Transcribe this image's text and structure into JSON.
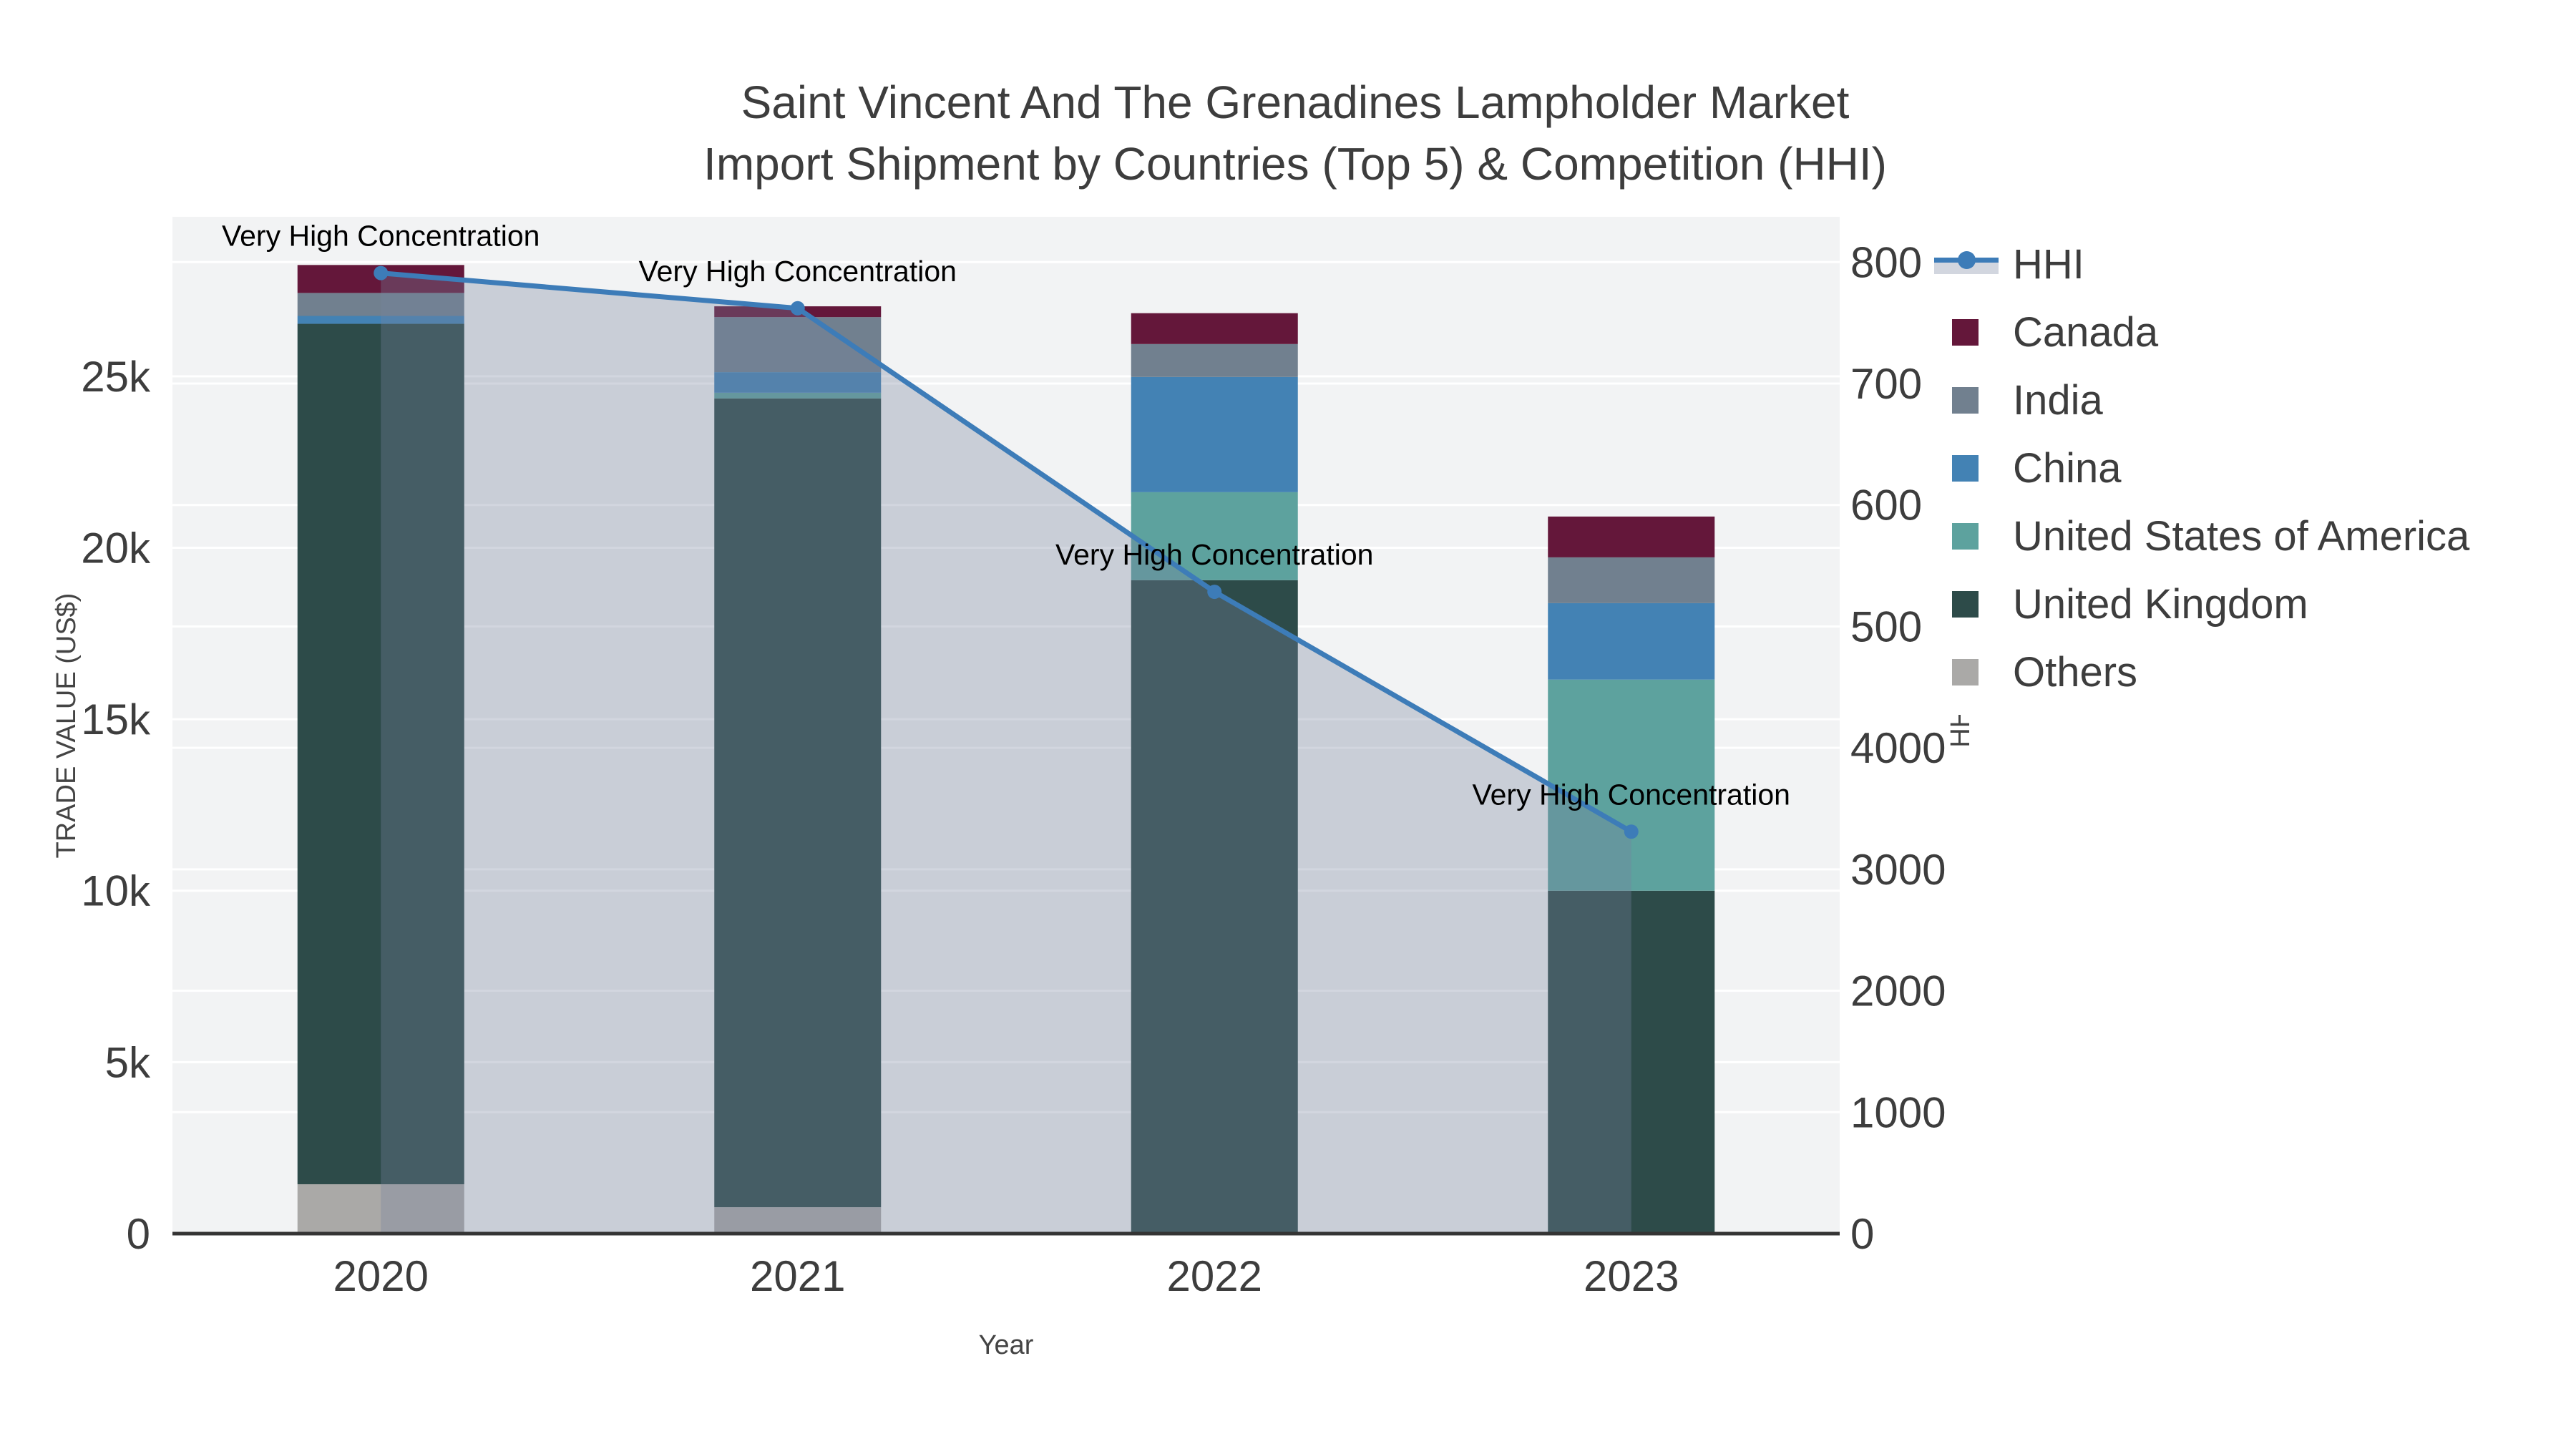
{
  "title": {
    "line1": "Saint Vincent And The Grenadines Lampholder Market",
    "line2": "Import Shipment by Countries (Top 5) & Competition (HHI)"
  },
  "axes": {
    "x": {
      "title": "Year",
      "ticks": [
        "2020",
        "2021",
        "2022",
        "2023"
      ]
    },
    "y_left": {
      "title": "TRADE VALUE (US$)",
      "tick_labels": [
        "0",
        "5k",
        "10k",
        "15k",
        "20k",
        "25k"
      ],
      "tick_values": [
        0,
        5000,
        10000,
        15000,
        20000,
        25000
      ],
      "range": [
        0,
        29650
      ]
    },
    "y_right": {
      "title": "HHI",
      "tick_labels": [
        "0",
        "1000",
        "2000",
        "3000",
        "4000",
        "5000",
        "6000",
        "7000",
        "8000"
      ],
      "tick_values": [
        0,
        1000,
        2000,
        3000,
        4000,
        5000,
        6000,
        7000,
        8000
      ],
      "range": [
        0,
        8373
      ]
    }
  },
  "chart_data": {
    "type": "bar+line",
    "subtype": "stacked-bars-with-line-on-secondary-axis",
    "categories": [
      "2020",
      "2021",
      "2022",
      "2023"
    ],
    "series_top_to_bottom": [
      {
        "name": "Canada",
        "color": "#64173a",
        "values": [
          815,
          315,
          900,
          1190
        ]
      },
      {
        "name": "India",
        "color": "#71808f",
        "values": [
          670,
          1605,
          960,
          1335
        ]
      },
      {
        "name": "China",
        "color": "#4382b4",
        "values": [
          230,
          600,
          3360,
          2230
        ]
      },
      {
        "name": "United States of America",
        "color": "#5da29e",
        "values": [
          0,
          165,
          2565,
          6155
        ]
      },
      {
        "name": "United Kingdom",
        "color": "#2d4b49",
        "values": [
          25090,
          23585,
          19055,
          10000
        ]
      },
      {
        "name": "Others",
        "color": "#aaa9a7",
        "values": [
          1440,
          770,
          0,
          0
        ]
      }
    ],
    "totals": [
      28245,
      27040,
      26840,
      20910
    ],
    "hhi": {
      "name": "HHI",
      "color": "#3d7cb8",
      "area_fill": "rgba(117,130,158,0.33)",
      "values": [
        7910,
        7620,
        5285,
        3310
      ],
      "axis": "y_right"
    },
    "annotations": [
      {
        "text": "Very High Concentration",
        "x_index": 0
      },
      {
        "text": "Very High Concentration",
        "x_index": 1
      },
      {
        "text": "Very High Concentration",
        "x_index": 2
      },
      {
        "text": "Very High Concentration",
        "x_index": 3
      }
    ]
  },
  "legend": {
    "items": [
      {
        "label": "HHI",
        "type": "line",
        "color": "#3d7cb8"
      },
      {
        "label": "Canada",
        "type": "square",
        "color": "#64173a"
      },
      {
        "label": "India",
        "type": "square",
        "color": "#71808f"
      },
      {
        "label": "China",
        "type": "square",
        "color": "#4382b4"
      },
      {
        "label": "United States of America",
        "type": "square",
        "color": "#5da29e"
      },
      {
        "label": "United Kingdom",
        "type": "square",
        "color": "#2d4b49"
      },
      {
        "label": "Others",
        "type": "square",
        "color": "#aaa9a7"
      }
    ]
  },
  "style_colors": {
    "plot_background": "#f2f3f4",
    "gridline": "#ffffff",
    "zero_line": "#343434",
    "tick_text": "#3d3d3d",
    "axis_title_text": "#444444",
    "annotation_text": "#000000"
  }
}
